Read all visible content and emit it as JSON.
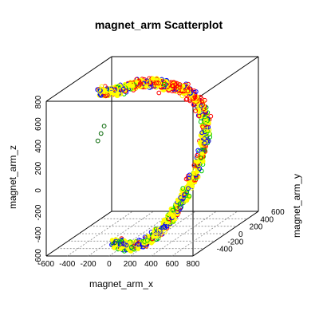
{
  "chart_data": {
    "type": "scatter",
    "title": "magnet_arm Scatterplot",
    "xlabel": "magnet_arm_x",
    "ylabel": "magnet_arm_y",
    "zlabel": "magnet_arm_z",
    "x_ticks": [
      "-600",
      "-400",
      "-200",
      "0",
      "200",
      "400",
      "600",
      "800"
    ],
    "y_ticks": [
      "-400",
      "-200",
      "0",
      "200",
      "400",
      "600"
    ],
    "z_ticks": [
      "-600",
      "-400",
      "-200",
      "0",
      "200",
      "400",
      "600",
      "800"
    ],
    "xlim": [
      -600,
      800
    ],
    "ylim": [
      -600,
      600
    ],
    "zlim": [
      -600,
      800
    ],
    "projection": "3d-box",
    "grid": "floor-only",
    "series_colors": [
      "#ffff00",
      "#0000ff",
      "#00cc00",
      "#ff0000",
      "#006400"
    ],
    "points": [
      {
        "x": -40,
        "y": -420,
        "z": -540,
        "c": 4
      },
      {
        "x": 0,
        "y": -400,
        "z": -560,
        "c": 1
      },
      {
        "x": 60,
        "y": -400,
        "z": -570,
        "c": 1
      },
      {
        "x": 120,
        "y": -420,
        "z": -580,
        "c": 2
      },
      {
        "x": 180,
        "y": -400,
        "z": -560,
        "c": 1
      },
      {
        "x": 240,
        "y": -360,
        "z": -540,
        "c": 2
      },
      {
        "x": 300,
        "y": -320,
        "z": -500,
        "c": 0
      },
      {
        "x": 360,
        "y": -280,
        "z": -440,
        "c": 1
      },
      {
        "x": 420,
        "y": -240,
        "z": -360,
        "c": 0
      },
      {
        "x": 470,
        "y": -200,
        "z": -260,
        "c": 2
      },
      {
        "x": 520,
        "y": -150,
        "z": -140,
        "c": 1
      },
      {
        "x": 560,
        "y": -100,
        "z": -20,
        "c": 0
      },
      {
        "x": 590,
        "y": -50,
        "z": 100,
        "c": 2
      },
      {
        "x": 600,
        "y": 0,
        "z": 220,
        "c": 1
      },
      {
        "x": 590,
        "y": 40,
        "z": 330,
        "c": 0
      },
      {
        "x": 560,
        "y": 80,
        "z": 430,
        "c": 2
      },
      {
        "x": 510,
        "y": 110,
        "z": 520,
        "c": 1
      },
      {
        "x": 440,
        "y": 130,
        "z": 590,
        "c": 3
      },
      {
        "x": 360,
        "y": 150,
        "z": 640,
        "c": 3
      },
      {
        "x": 280,
        "y": 160,
        "z": 670,
        "c": 3
      },
      {
        "x": 200,
        "y": 170,
        "z": 680,
        "c": 3
      },
      {
        "x": 120,
        "y": 180,
        "z": 690,
        "c": 2
      },
      {
        "x": 40,
        "y": 190,
        "z": 700,
        "c": 3
      },
      {
        "x": -40,
        "y": 200,
        "z": 700,
        "c": 0
      },
      {
        "x": -120,
        "y": 200,
        "z": 690,
        "c": 3
      },
      {
        "x": -200,
        "y": 200,
        "z": 670,
        "c": 0
      },
      {
        "x": -280,
        "y": 200,
        "z": 640,
        "c": 1
      },
      {
        "x": -360,
        "y": 190,
        "z": 620,
        "c": 0
      },
      {
        "x": -440,
        "y": 180,
        "z": 620,
        "c": 0
      },
      {
        "x": -500,
        "y": 180,
        "z": 640,
        "c": 0
      },
      {
        "x": 80,
        "y": 160,
        "z": 620,
        "c": 3
      },
      {
        "x": 340,
        "y": 160,
        "z": 560,
        "c": 3
      },
      {
        "x": 420,
        "y": 140,
        "z": 520,
        "c": 3
      },
      {
        "x": 450,
        "y": 120,
        "z": 470,
        "c": 3
      },
      {
        "x": -380,
        "y": 40,
        "z": 360,
        "c": 4
      },
      {
        "x": -400,
        "y": 20,
        "z": 300,
        "c": 4
      },
      {
        "x": -420,
        "y": 0,
        "z": 240,
        "c": 4
      }
    ]
  }
}
